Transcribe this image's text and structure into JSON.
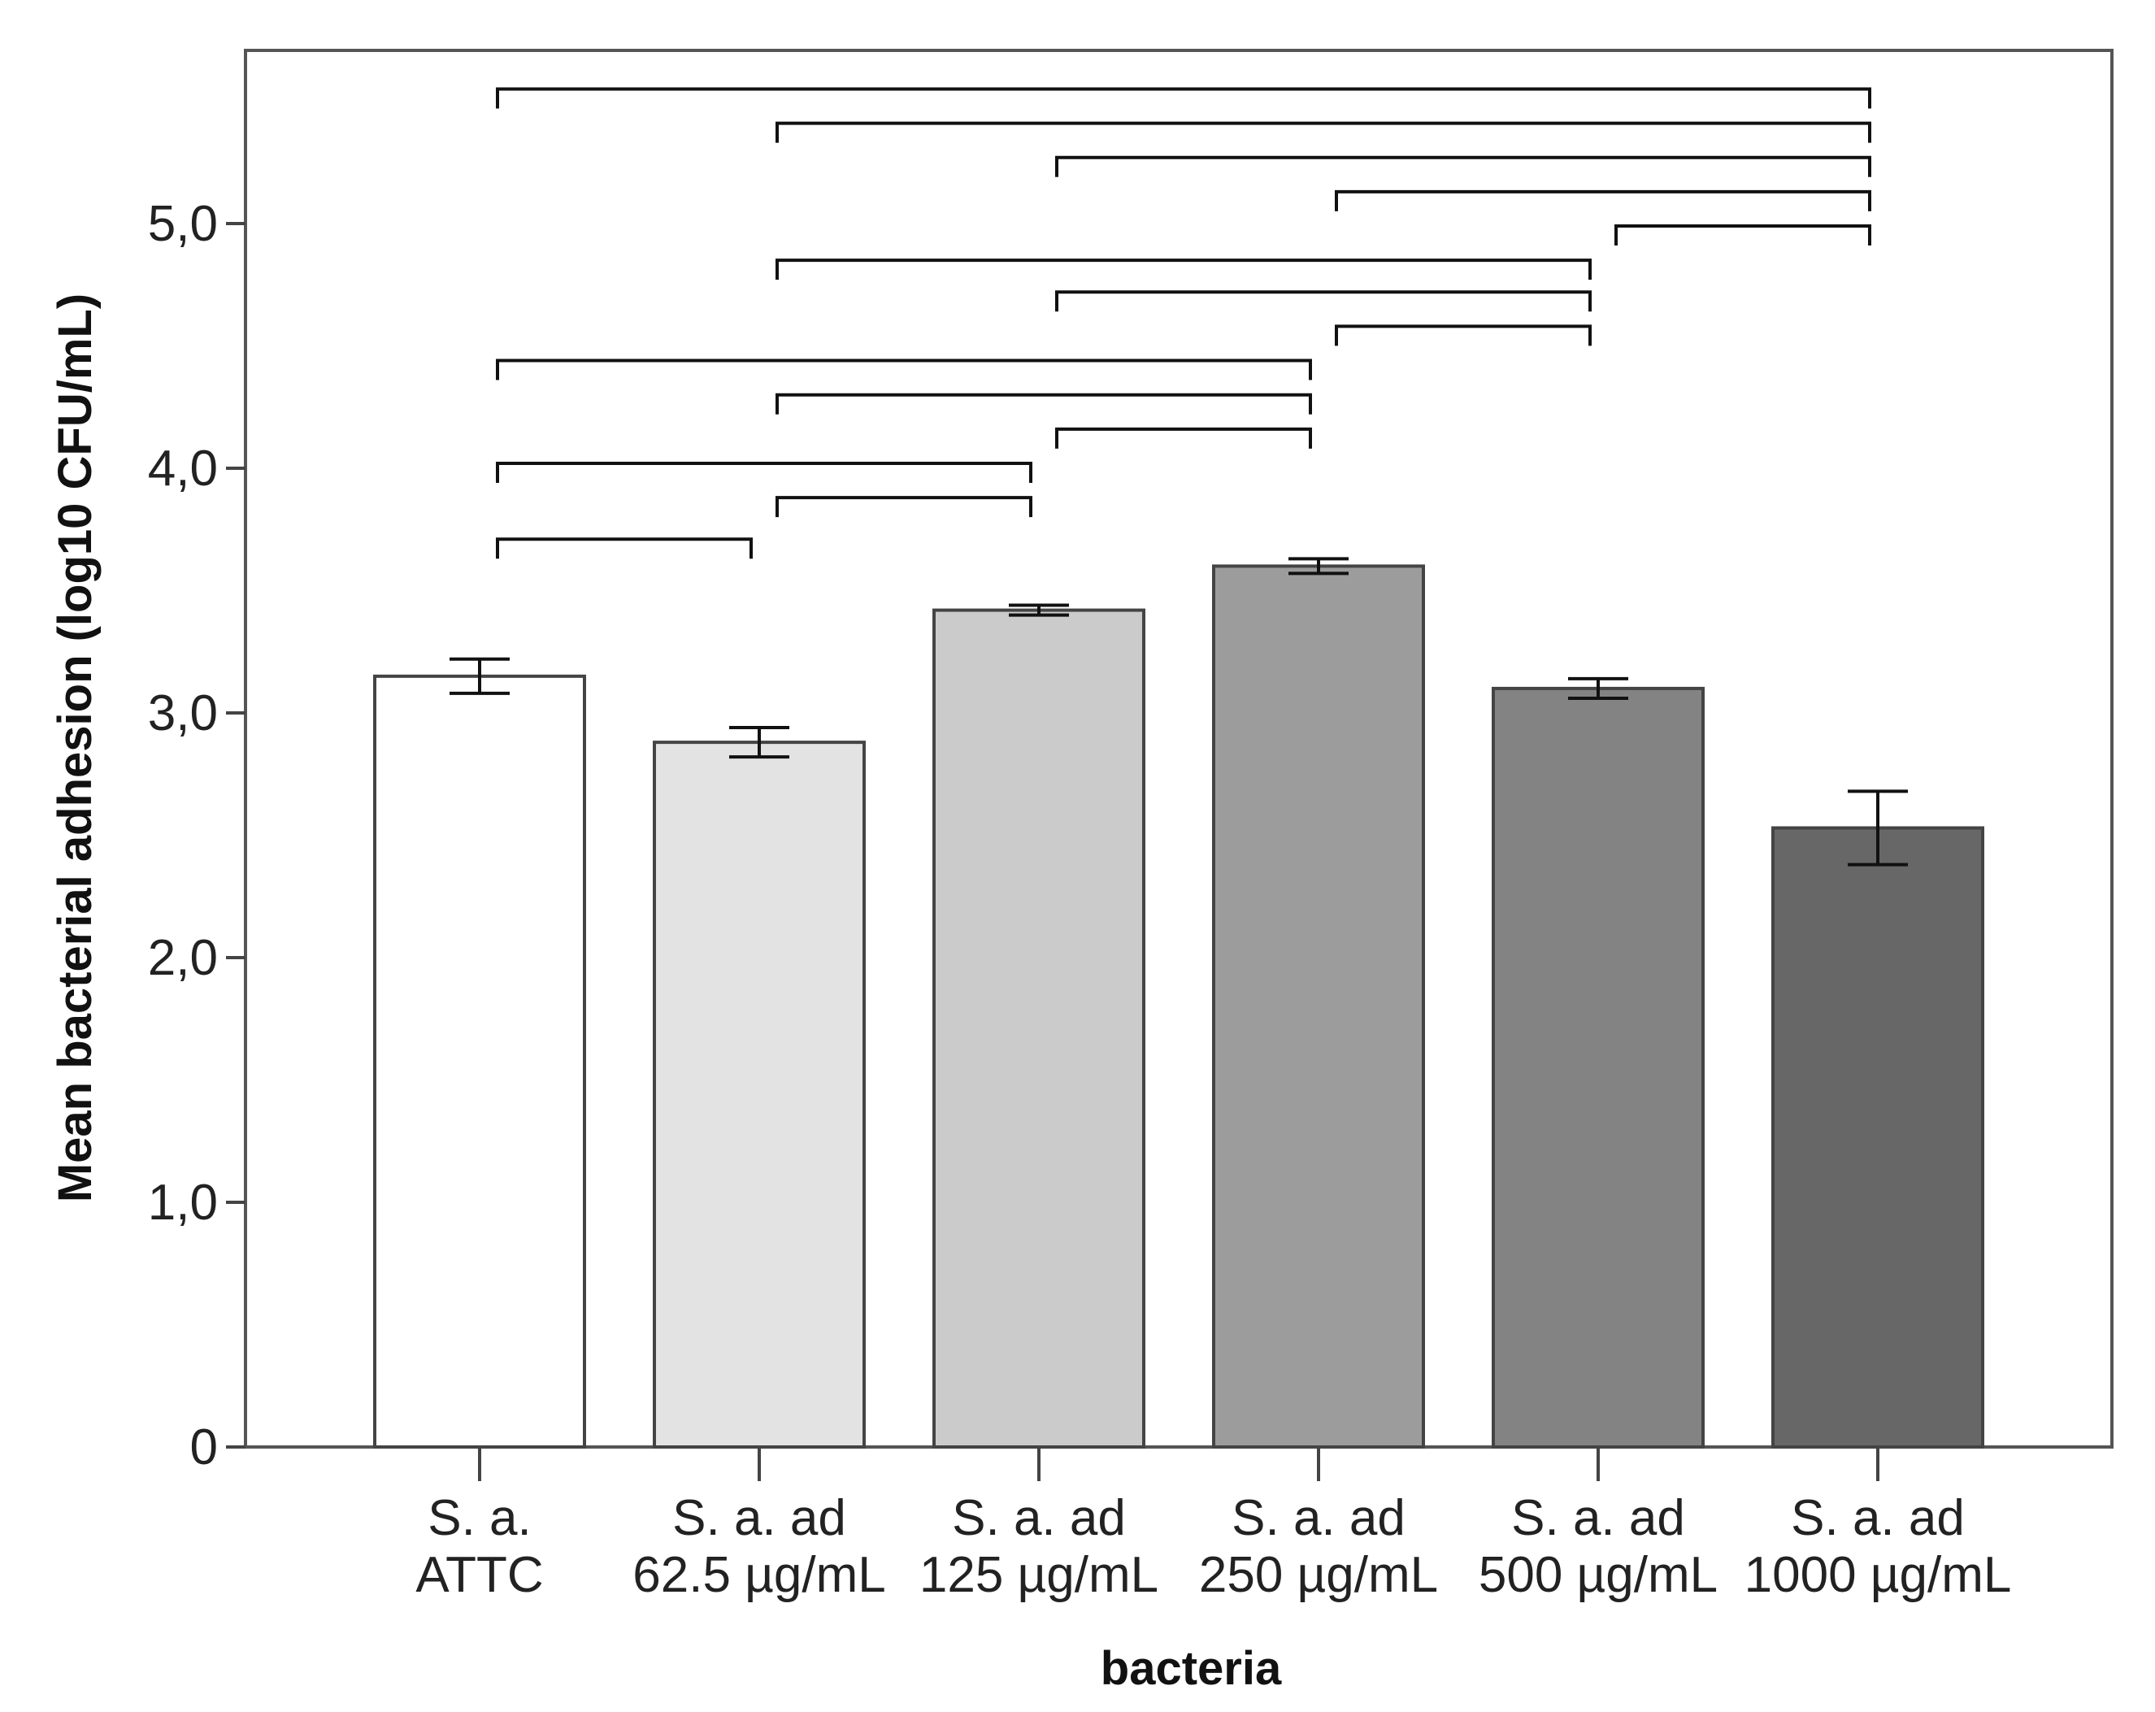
{
  "chart_data": {
    "type": "bar",
    "title": "",
    "xlabel": "bacteria",
    "ylabel": "Mean bacterial adhesion (log10 CFU/mL)",
    "ylim": [
      0,
      5.7
    ],
    "yticks": [
      {
        "value": 0,
        "label": "0"
      },
      {
        "value": 1,
        "label": "1,0"
      },
      {
        "value": 2,
        "label": "2,0"
      },
      {
        "value": 3,
        "label": "3,0"
      },
      {
        "value": 4,
        "label": "4,0"
      },
      {
        "value": 5,
        "label": "5,0"
      }
    ],
    "categories": [
      {
        "line1": "S. a.",
        "line2": "ATTC"
      },
      {
        "line1": "S. a. ad",
        "line2": "62.5 µg/mL"
      },
      {
        "line1": "S. a. ad",
        "line2": "125 µg/mL"
      },
      {
        "line1": "S. a. ad",
        "line2": "250 µg/mL"
      },
      {
        "line1": "S. a. ad",
        "line2": "500 µg/mL"
      },
      {
        "line1": "S. a. ad",
        "line2": "1000 µg/mL"
      }
    ],
    "values": [
      3.15,
      2.88,
      3.42,
      3.6,
      3.1,
      2.53
    ],
    "error_low": [
      3.08,
      2.82,
      3.4,
      3.57,
      3.06,
      2.38
    ],
    "error_high": [
      3.22,
      2.94,
      3.44,
      3.63,
      3.14,
      2.68
    ],
    "bar_colors": [
      "#ffffff",
      "#e3e3e3",
      "#cbcbcb",
      "#9c9c9c",
      "#838383",
      "#676767"
    ],
    "significance_brackets": [
      {
        "from": 0,
        "to": 5,
        "level": 5.55
      },
      {
        "from": 1,
        "to": 5,
        "level": 5.41
      },
      {
        "from": 2,
        "to": 5,
        "level": 5.27
      },
      {
        "from": 3,
        "to": 5,
        "level": 5.13
      },
      {
        "from": 4,
        "to": 5,
        "level": 4.99
      },
      {
        "from": 1,
        "to": 4,
        "level": 4.85
      },
      {
        "from": 2,
        "to": 4,
        "level": 4.72
      },
      {
        "from": 3,
        "to": 4,
        "level": 4.58
      },
      {
        "from": 0,
        "to": 3,
        "level": 4.44
      },
      {
        "from": 1,
        "to": 3,
        "level": 4.3
      },
      {
        "from": 2,
        "to": 3,
        "level": 4.16
      },
      {
        "from": 0,
        "to": 2,
        "level": 4.02
      },
      {
        "from": 1,
        "to": 2,
        "level": 3.88
      },
      {
        "from": 0,
        "to": 1,
        "level": 3.71
      }
    ]
  }
}
